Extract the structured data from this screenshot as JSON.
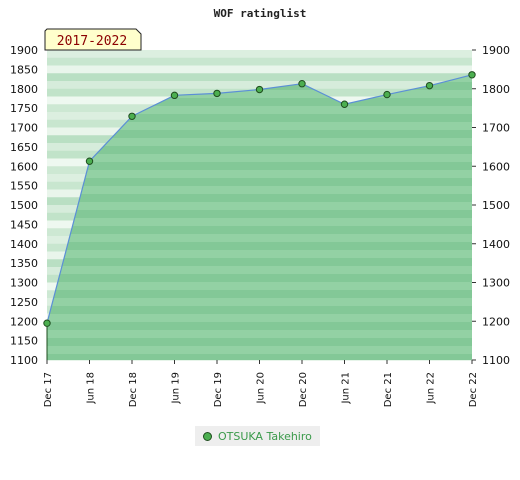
{
  "chart_data": {
    "type": "area",
    "title": "WOF ratinglist",
    "period_badge": "2017-2022",
    "x": [
      "Dec 17",
      "Jun 18",
      "Dec 18",
      "Jun 19",
      "Dec 19",
      "Jun 20",
      "Dec 20",
      "Jun 21",
      "Dec 21",
      "Jun 22",
      "Dec 22"
    ],
    "series": [
      {
        "name": "OTSUKA Takehiro",
        "values": [
          1195,
          1613,
          1729,
          1783,
          1788,
          1798,
          1813,
          1760,
          1785,
          1808,
          1836
        ]
      }
    ],
    "ylim": [
      1100,
      1900
    ],
    "left_yticks": [
      1100,
      1150,
      1200,
      1250,
      1300,
      1350,
      1400,
      1450,
      1500,
      1550,
      1600,
      1650,
      1700,
      1750,
      1800,
      1850,
      1900
    ],
    "right_yticks": [
      1100,
      1200,
      1300,
      1400,
      1500,
      1600,
      1700,
      1800,
      1900
    ],
    "legend_position": "bottom-center",
    "colors": {
      "area_fill": "#7cc38c",
      "line": "#5b8fd6",
      "marker": "#4caf50",
      "marker_edge": "#1e4d1e",
      "badge_bg": "#ffffcc",
      "badge_text": "#8b0000",
      "legend_text": "#3a9a4a"
    }
  }
}
